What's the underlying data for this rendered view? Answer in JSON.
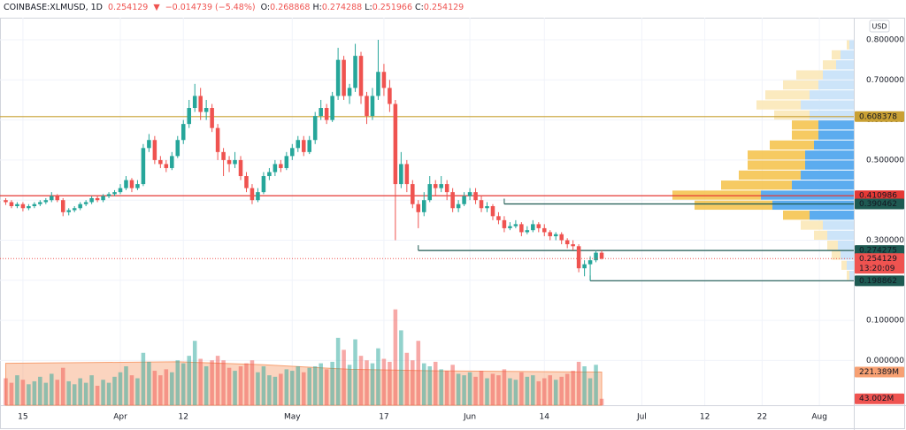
{
  "chart_data": {
    "type": "candlestick",
    "header": {
      "symbol": "COINBASE:XLMUSD, 1D",
      "change_arrow": "▼",
      "change": "−0.014739 (−5.48%)",
      "ohlc_labels": [
        "O:",
        "H:",
        "L:",
        "C:"
      ]
    },
    "currency": "USD",
    "countdown": "13:20:09",
    "up_color": "#26a69a",
    "down_color": "#ef5350",
    "candles": [
      [
        0.4,
        0.405,
        0.388,
        0.395
      ],
      [
        0.395,
        0.4,
        0.38,
        0.385
      ],
      [
        0.385,
        0.395,
        0.38,
        0.39
      ],
      [
        0.39,
        0.395,
        0.372,
        0.38
      ],
      [
        0.38,
        0.39,
        0.375,
        0.385
      ],
      [
        0.385,
        0.395,
        0.38,
        0.39
      ],
      [
        0.39,
        0.4,
        0.385,
        0.395
      ],
      [
        0.395,
        0.405,
        0.39,
        0.4
      ],
      [
        0.4,
        0.42,
        0.395,
        0.41
      ],
      [
        0.41,
        0.415,
        0.395,
        0.4
      ],
      [
        0.4,
        0.405,
        0.36,
        0.37
      ],
      [
        0.37,
        0.38,
        0.362,
        0.375
      ],
      [
        0.375,
        0.385,
        0.37,
        0.38
      ],
      [
        0.38,
        0.395,
        0.375,
        0.39
      ],
      [
        0.39,
        0.4,
        0.385,
        0.395
      ],
      [
        0.395,
        0.41,
        0.39,
        0.405
      ],
      [
        0.405,
        0.41,
        0.395,
        0.4
      ],
      [
        0.4,
        0.415,
        0.395,
        0.41
      ],
      [
        0.41,
        0.42,
        0.405,
        0.415
      ],
      [
        0.415,
        0.425,
        0.41,
        0.42
      ],
      [
        0.42,
        0.44,
        0.415,
        0.43
      ],
      [
        0.43,
        0.46,
        0.425,
        0.45
      ],
      [
        0.45,
        0.455,
        0.42,
        0.43
      ],
      [
        0.43,
        0.45,
        0.425,
        0.44
      ],
      [
        0.44,
        0.54,
        0.435,
        0.53
      ],
      [
        0.53,
        0.565,
        0.52,
        0.55
      ],
      [
        0.55,
        0.56,
        0.49,
        0.5
      ],
      [
        0.5,
        0.51,
        0.48,
        0.49
      ],
      [
        0.49,
        0.5,
        0.47,
        0.48
      ],
      [
        0.48,
        0.52,
        0.475,
        0.51
      ],
      [
        0.51,
        0.56,
        0.505,
        0.55
      ],
      [
        0.55,
        0.6,
        0.54,
        0.59
      ],
      [
        0.59,
        0.65,
        0.58,
        0.63
      ],
      [
        0.63,
        0.69,
        0.62,
        0.66
      ],
      [
        0.66,
        0.68,
        0.6,
        0.62
      ],
      [
        0.62,
        0.65,
        0.6,
        0.63
      ],
      [
        0.63,
        0.64,
        0.57,
        0.58
      ],
      [
        0.58,
        0.59,
        0.5,
        0.52
      ],
      [
        0.52,
        0.53,
        0.46,
        0.5
      ],
      [
        0.5,
        0.51,
        0.47,
        0.49
      ],
      [
        0.49,
        0.52,
        0.48,
        0.5
      ],
      [
        0.5,
        0.51,
        0.45,
        0.46
      ],
      [
        0.46,
        0.47,
        0.42,
        0.43
      ],
      [
        0.43,
        0.44,
        0.39,
        0.4
      ],
      [
        0.4,
        0.43,
        0.395,
        0.42
      ],
      [
        0.42,
        0.47,
        0.415,
        0.46
      ],
      [
        0.46,
        0.48,
        0.45,
        0.47
      ],
      [
        0.47,
        0.5,
        0.46,
        0.49
      ],
      [
        0.49,
        0.5,
        0.47,
        0.48
      ],
      [
        0.48,
        0.52,
        0.475,
        0.51
      ],
      [
        0.51,
        0.54,
        0.5,
        0.53
      ],
      [
        0.53,
        0.56,
        0.52,
        0.55
      ],
      [
        0.55,
        0.56,
        0.51,
        0.52
      ],
      [
        0.52,
        0.56,
        0.515,
        0.55
      ],
      [
        0.55,
        0.62,
        0.54,
        0.61
      ],
      [
        0.61,
        0.65,
        0.6,
        0.63
      ],
      [
        0.63,
        0.64,
        0.59,
        0.6
      ],
      [
        0.6,
        0.67,
        0.595,
        0.66
      ],
      [
        0.66,
        0.78,
        0.65,
        0.75
      ],
      [
        0.75,
        0.76,
        0.65,
        0.66
      ],
      [
        0.66,
        0.69,
        0.64,
        0.68
      ],
      [
        0.68,
        0.79,
        0.67,
        0.76
      ],
      [
        0.76,
        0.77,
        0.64,
        0.66
      ],
      [
        0.66,
        0.67,
        0.59,
        0.61
      ],
      [
        0.61,
        0.68,
        0.6,
        0.66
      ],
      [
        0.66,
        0.8,
        0.65,
        0.72
      ],
      [
        0.72,
        0.74,
        0.66,
        0.68
      ],
      [
        0.68,
        0.7,
        0.62,
        0.64
      ],
      [
        0.64,
        0.65,
        0.3,
        0.44
      ],
      [
        0.44,
        0.52,
        0.43,
        0.49
      ],
      [
        0.49,
        0.5,
        0.42,
        0.44
      ],
      [
        0.44,
        0.45,
        0.38,
        0.39
      ],
      [
        0.39,
        0.4,
        0.33,
        0.37
      ],
      [
        0.37,
        0.42,
        0.36,
        0.4
      ],
      [
        0.4,
        0.46,
        0.395,
        0.44
      ],
      [
        0.44,
        0.45,
        0.41,
        0.43
      ],
      [
        0.43,
        0.46,
        0.42,
        0.44
      ],
      [
        0.44,
        0.45,
        0.4,
        0.42
      ],
      [
        0.42,
        0.43,
        0.37,
        0.38
      ],
      [
        0.38,
        0.4,
        0.37,
        0.39
      ],
      [
        0.39,
        0.42,
        0.385,
        0.41
      ],
      [
        0.41,
        0.43,
        0.4,
        0.42
      ],
      [
        0.42,
        0.43,
        0.39,
        0.4
      ],
      [
        0.4,
        0.41,
        0.37,
        0.38
      ],
      [
        0.38,
        0.395,
        0.37,
        0.385
      ],
      [
        0.385,
        0.39,
        0.35,
        0.36
      ],
      [
        0.36,
        0.37,
        0.34,
        0.35
      ],
      [
        0.35,
        0.36,
        0.32,
        0.33
      ],
      [
        0.33,
        0.345,
        0.325,
        0.335
      ],
      [
        0.335,
        0.35,
        0.33,
        0.34
      ],
      [
        0.34,
        0.345,
        0.31,
        0.32
      ],
      [
        0.32,
        0.335,
        0.315,
        0.325
      ],
      [
        0.325,
        0.35,
        0.32,
        0.34
      ],
      [
        0.34,
        0.345,
        0.32,
        0.33
      ],
      [
        0.33,
        0.34,
        0.31,
        0.32
      ],
      [
        0.32,
        0.325,
        0.3,
        0.31
      ],
      [
        0.31,
        0.32,
        0.3,
        0.315
      ],
      [
        0.315,
        0.32,
        0.29,
        0.3
      ],
      [
        0.3,
        0.305,
        0.28,
        0.29
      ],
      [
        0.29,
        0.3,
        0.275,
        0.285
      ],
      [
        0.285,
        0.29,
        0.22,
        0.23
      ],
      [
        0.23,
        0.25,
        0.21,
        0.24
      ],
      [
        0.24,
        0.26,
        0.198862,
        0.25
      ],
      [
        0.25,
        0.275,
        0.245,
        0.268868
      ],
      [
        0.268868,
        0.274288,
        0.251966,
        0.254129
      ]
    ],
    "volume": [
      180,
      150,
      200,
      170,
      140,
      160,
      190,
      150,
      210,
      170,
      250,
      160,
      140,
      180,
      150,
      200,
      130,
      170,
      150,
      190,
      220,
      260,
      200,
      180,
      350,
      290,
      230,
      200,
      240,
      220,
      300,
      280,
      330,
      430,
      310,
      260,
      300,
      330,
      300,
      250,
      230,
      260,
      280,
      300,
      220,
      260,
      200,
      190,
      210,
      240,
      230,
      260,
      220,
      250,
      260,
      280,
      240,
      290,
      450,
      370,
      270,
      440,
      330,
      300,
      280,
      380,
      310,
      290,
      640,
      500,
      350,
      300,
      430,
      280,
      260,
      290,
      240,
      230,
      270,
      210,
      200,
      220,
      190,
      230,
      180,
      210,
      200,
      240,
      180,
      170,
      220,
      190,
      200,
      160,
      180,
      200,
      170,
      190,
      210,
      230,
      290,
      260,
      180,
      270,
      43.002
    ],
    "volume_labels": {
      "104": "43.002M"
    },
    "volume_ylim": [
      0,
      650
    ],
    "volume_ma": {
      "x": [
        0,
        15,
        30,
        45,
        60,
        75,
        90,
        104
      ],
      "values": [
        280,
        285,
        290,
        270,
        240,
        230,
        225,
        221.389
      ],
      "color": "#f7a072",
      "value_label": "221.389M"
    },
    "xlim": [
      -1,
      148
    ],
    "xticks": [
      {
        "value": 3,
        "label": "15"
      },
      {
        "value": 20,
        "label": "Apr"
      },
      {
        "value": 31,
        "label": "12"
      },
      {
        "value": 50,
        "label": "May"
      },
      {
        "value": 66,
        "label": "17"
      },
      {
        "value": 81,
        "label": "Jun"
      },
      {
        "value": 94,
        "label": "14"
      },
      {
        "value": 111,
        "label": "Jul"
      },
      {
        "value": 122,
        "label": "12"
      },
      {
        "value": 132,
        "label": "22"
      },
      {
        "value": 142,
        "label": "Aug"
      }
    ],
    "ylim": [
      -0.1117,
      0.8552
    ],
    "yticks": [
      {
        "value": 0.8,
        "label": "0.800000"
      },
      {
        "value": 0.7,
        "label": "0.700000"
      },
      {
        "value": 0.6,
        "label": "0.600000"
      },
      {
        "value": 0.5,
        "label": "0.500000"
      },
      {
        "value": 0.4,
        "label": "0.400000"
      },
      {
        "value": 0.3,
        "label": "0.300000"
      },
      {
        "value": 0.2,
        "label": "0.200000"
      },
      {
        "value": 0.1,
        "label": "0.100000"
      },
      {
        "value": 0,
        "label": "0.000000"
      }
    ],
    "grid": true,
    "levels": [
      {
        "value": 0.608378,
        "color": "#c9a033",
        "from": -1
      },
      {
        "value": 0.410986,
        "color": "#e53935",
        "from": -1
      },
      {
        "value": 0.390462,
        "color": "#1e5a52",
        "from": 87
      },
      {
        "value": 0.274275,
        "color": "#1e5a52",
        "from": 72
      },
      {
        "value": 0.198862,
        "color": "#1e5a52",
        "from": 102
      }
    ],
    "volume_profile": {
      "bins": [
        0.2,
        0.225,
        0.25,
        0.275,
        0.3,
        0.325,
        0.35,
        0.375,
        0.4,
        0.425,
        0.45,
        0.475,
        0.5,
        0.525,
        0.55,
        0.575,
        0.6,
        0.625,
        0.65,
        0.675,
        0.7,
        0.725,
        0.75,
        0.775,
        0.8
      ],
      "up": [
        50,
        80,
        150,
        180,
        300,
        350,
        500,
        920,
        1050,
        700,
        600,
        550,
        550,
        450,
        400,
        400,
        500,
        600,
        500,
        400,
        350,
        200,
        150,
        50
      ],
      "down": [
        30,
        60,
        100,
        120,
        150,
        250,
        300,
        880,
        1000,
        800,
        700,
        650,
        650,
        500,
        300,
        300,
        400,
        500,
        500,
        400,
        300,
        150,
        100,
        30
      ],
      "value_area": [
        0.35,
        0.6
      ],
      "up_color": "#4aa3ed",
      "down_color": "#f5c451",
      "up_light": "#c6e1f8",
      "down_light": "#fbe8b8"
    }
  }
}
